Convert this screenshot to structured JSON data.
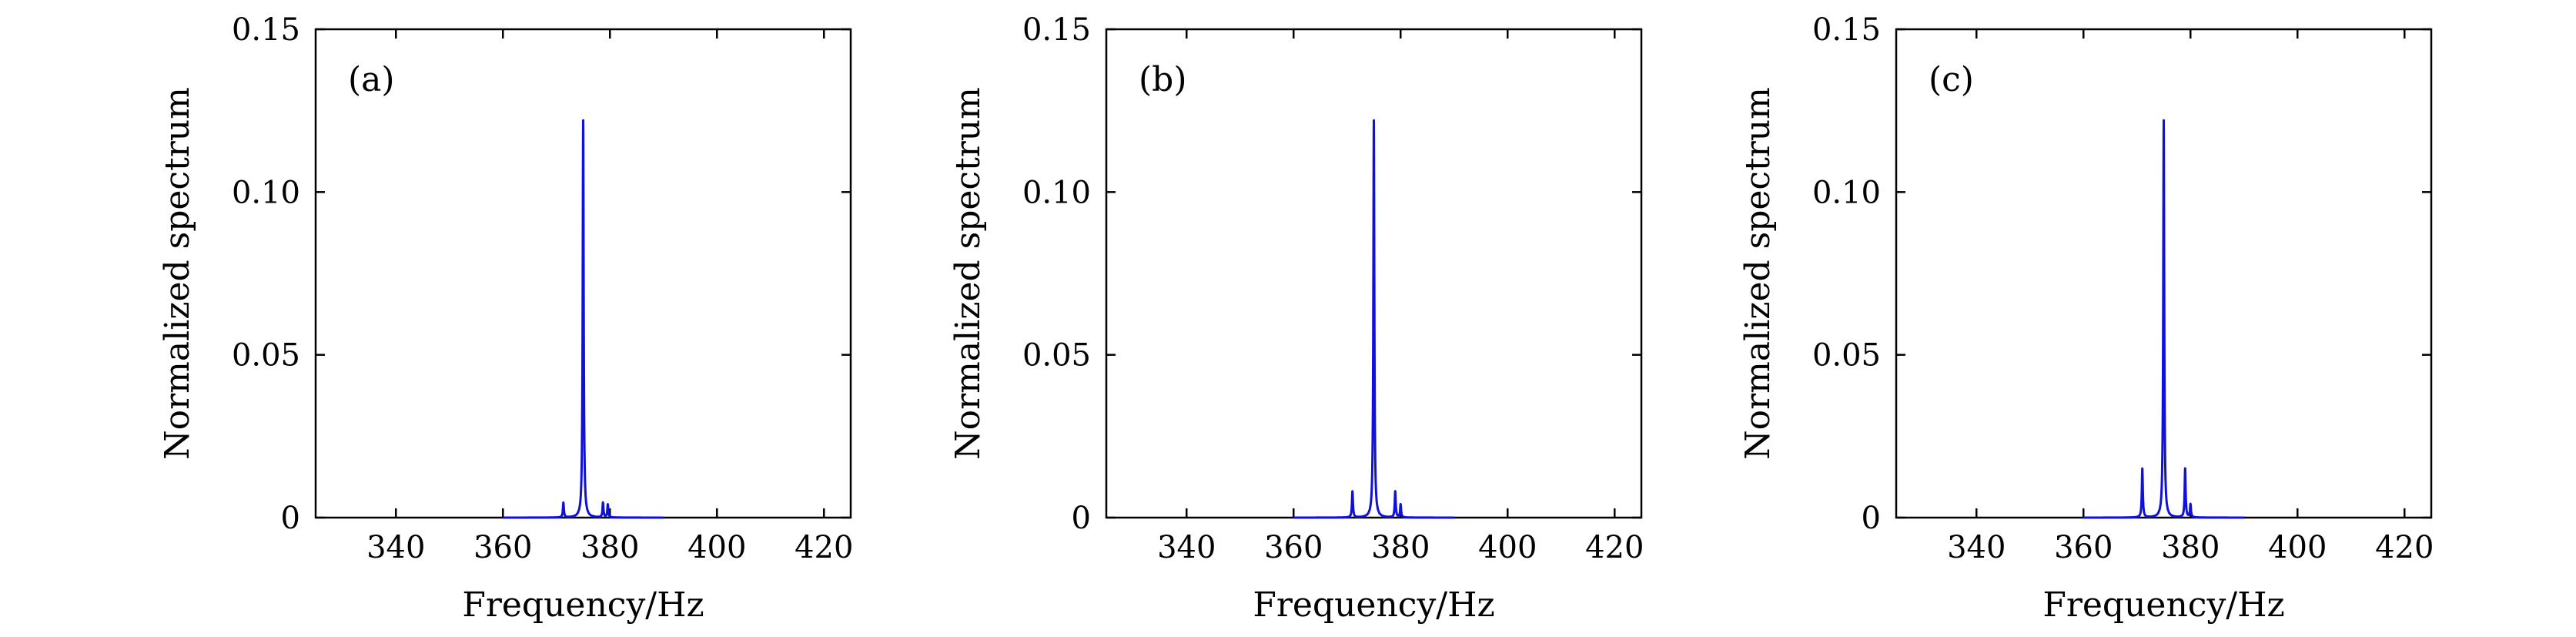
{
  "figure": {
    "style": {
      "line_color": "#1010dd",
      "axis_color": "#000000",
      "background": "#ffffff"
    }
  },
  "chart_data": [
    {
      "type": "line",
      "panel_label": "(a)",
      "xlabel": "Frequency/Hz",
      "ylabel": "Normalized spectrum",
      "xlim": [
        325,
        425
      ],
      "ylim": [
        0,
        0.15
      ],
      "xticks": [
        340,
        360,
        380,
        400,
        420
      ],
      "yticks": [
        0,
        0.05,
        0.1,
        0.15
      ],
      "ytick_labels": [
        "0",
        "0.05",
        "0.10",
        "0.15"
      ],
      "grid": false,
      "series": [
        {
          "peaks": [
            {
              "x": 375,
              "y": 0.122
            },
            {
              "x": 371.3,
              "y": 0.0045
            },
            {
              "x": 378.7,
              "y": 0.0045
            },
            {
              "x": 379.6,
              "y": 0.004
            }
          ]
        }
      ]
    },
    {
      "type": "line",
      "panel_label": "(b)",
      "xlabel": "Frequency/Hz",
      "ylabel": "Normalized spectrum",
      "xlim": [
        325,
        425
      ],
      "ylim": [
        0,
        0.15
      ],
      "xticks": [
        340,
        360,
        380,
        400,
        420
      ],
      "yticks": [
        0,
        0.05,
        0.1,
        0.15
      ],
      "ytick_labels": [
        "0",
        "0.05",
        "0.10",
        "0.15"
      ],
      "grid": false,
      "series": [
        {
          "peaks": [
            {
              "x": 375,
              "y": 0.122
            },
            {
              "x": 371.0,
              "y": 0.008
            },
            {
              "x": 379.0,
              "y": 0.008
            },
            {
              "x": 380.0,
              "y": 0.004
            }
          ]
        }
      ]
    },
    {
      "type": "line",
      "panel_label": "(c)",
      "xlabel": "Frequency/Hz",
      "ylabel": "Normalized spectrum",
      "xlim": [
        325,
        425
      ],
      "ylim": [
        0,
        0.15
      ],
      "xticks": [
        340,
        360,
        380,
        400,
        420
      ],
      "yticks": [
        0,
        0.05,
        0.1,
        0.15
      ],
      "ytick_labels": [
        "0",
        "0.05",
        "0.10",
        "0.15"
      ],
      "grid": false,
      "series": [
        {
          "peaks": [
            {
              "x": 375,
              "y": 0.122
            },
            {
              "x": 371.0,
              "y": 0.015
            },
            {
              "x": 379.0,
              "y": 0.015
            },
            {
              "x": 380.0,
              "y": 0.004
            }
          ]
        }
      ]
    }
  ]
}
